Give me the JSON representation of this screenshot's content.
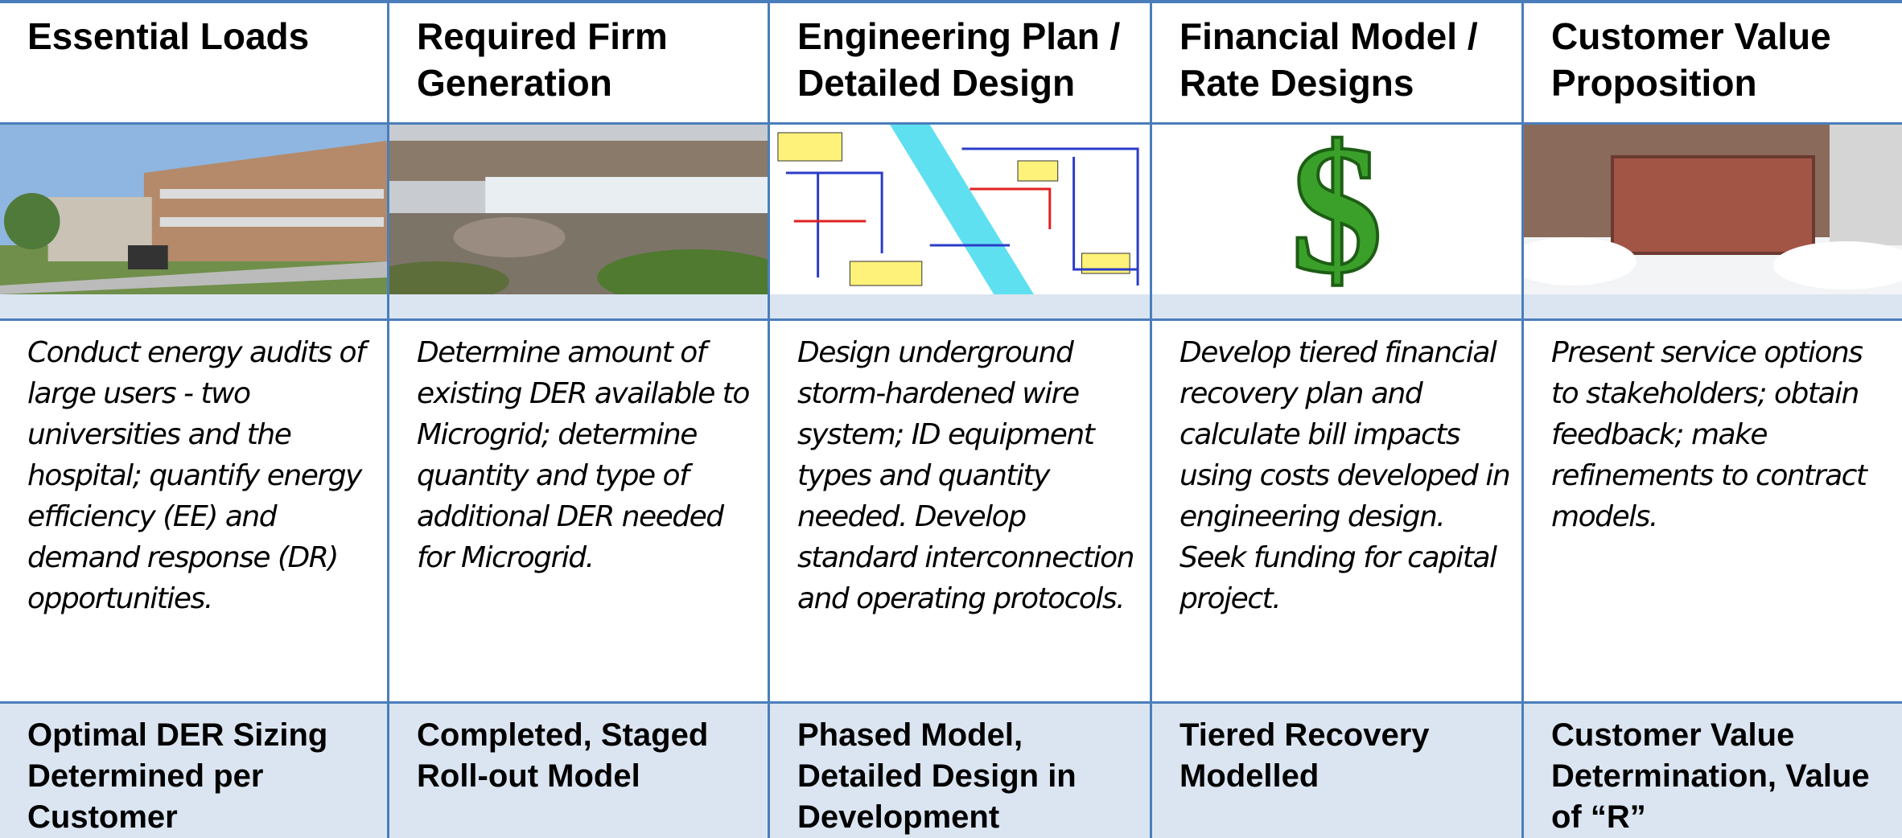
{
  "columns": [
    {
      "title": "Essential Loads",
      "description": "Conduct energy audits of  large users - two universities and the hospital; quantify energy efficiency (EE) and demand response (DR) opportunities.",
      "outcome": "Optimal DER Sizing Determined per Customer"
    },
    {
      "title": "Required Firm Generation",
      "description": "Determine amount of existing DER available to Microgrid; determine quantity and type of additional  DER needed for Microgrid.",
      "outcome": "Completed, Staged Roll-out Model"
    },
    {
      "title": "Engineering Plan / Detailed Design",
      "description": "Design underground storm-hardened wire system; ID equipment types and quantity needed. Develop standard interconnection and operating protocols.",
      "outcome": "Phased Model, Detailed Design in Development"
    },
    {
      "title": "Financial Model / Rate Designs",
      "description": "Develop tiered financial recovery plan and calculate bill impacts using costs developed in engineering design. Seek funding for capital project.",
      "outcome": "Tiered Recovery Modelled"
    },
    {
      "title": "Customer Value Proposition",
      "description": "Present service options to stakeholders; obtain feedback;  make refinements to contract models.",
      "outcome": "Customer Value Determination, Value of “R”"
    }
  ]
}
